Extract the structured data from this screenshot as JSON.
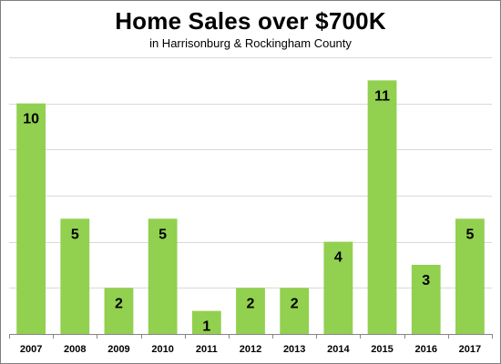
{
  "chart_data": {
    "type": "bar",
    "title": "Home Sales over $700K",
    "subtitle": "in Harrisonburg & Rockingham County",
    "categories": [
      "2007",
      "2008",
      "2009",
      "2010",
      "2011",
      "2012",
      "2013",
      "2014",
      "2015",
      "2016",
      "2017"
    ],
    "values": [
      10,
      5,
      2,
      5,
      1,
      2,
      2,
      4,
      11,
      3,
      5
    ],
    "ylim": [
      0,
      12
    ],
    "grid": true,
    "data_labels": true,
    "bar_color": "#92d050",
    "grid_color": "#d9d9d9",
    "axis_color": "#868686"
  }
}
